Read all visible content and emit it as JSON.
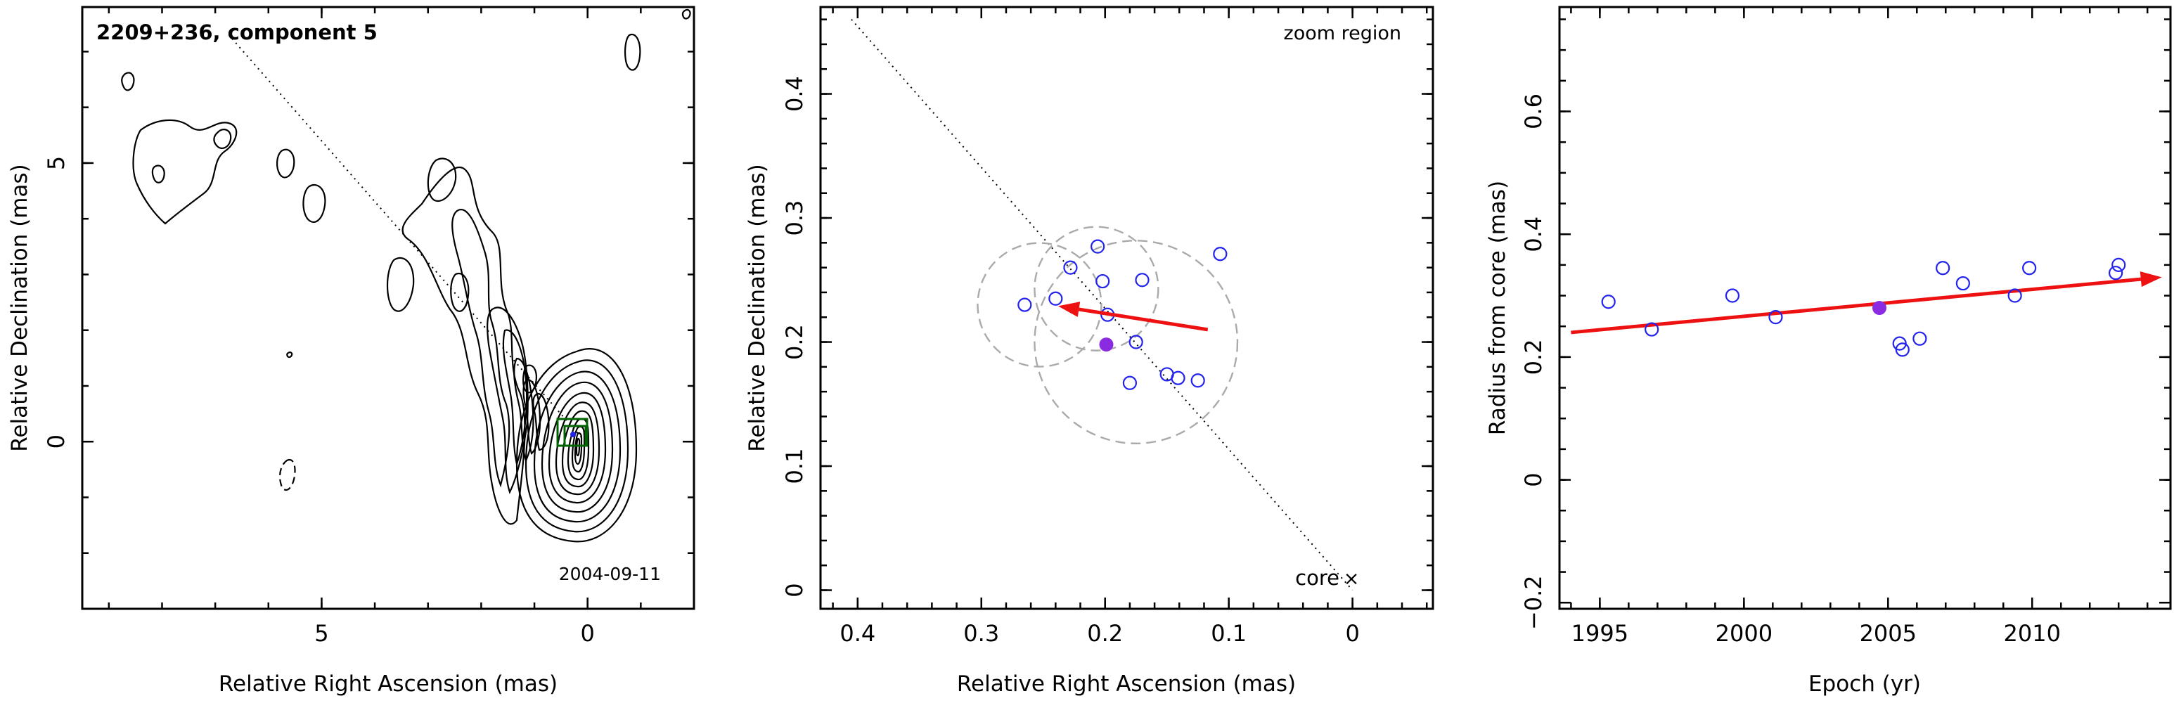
{
  "colors": {
    "frame": "#000000",
    "points": "#2323ee",
    "highlight_point": "#8a2be2",
    "arrow": "#ee1111",
    "circles": "#aaaaaa",
    "box": "#006400"
  },
  "panels": {
    "a": {
      "title": "2209+236, component 5",
      "epoch": "2004-09-11"
    },
    "b": {
      "zoom_label": "zoom region",
      "core_label": "core",
      "core_marker": "×"
    }
  },
  "chart_data": [
    {
      "type": "contour map",
      "title": "2209+236, component 5",
      "annotation": "2004-09-11",
      "xlabel": "Relative Right Ascension (mas)",
      "ylabel": "Relative Declination (mas)",
      "xlim": [
        9.5,
        -2.0
      ],
      "ylim": [
        -3.0,
        7.8
      ],
      "xticks": [
        5,
        0
      ],
      "yticks": [
        5,
        0
      ],
      "component_position": [
        0.2,
        0.2
      ],
      "features": [
        "total-intensity contours",
        "jet ridge line",
        "component box"
      ]
    },
    {
      "type": "scatter",
      "title": "",
      "annotation": "zoom region",
      "xlabel": "Relative Right Ascension (mas)",
      "ylabel": "Relative Declination (mas)",
      "xlim": [
        0.43,
        -0.065
      ],
      "ylim": [
        -0.015,
        0.47
      ],
      "xticks": [
        0.4,
        0.3,
        0.2,
        0.1,
        0
      ],
      "yticks": [
        0,
        0.1,
        0.2,
        0.3,
        0.4
      ],
      "points": [
        {
          "x": 0.265,
          "y": 0.23
        },
        {
          "x": 0.24,
          "y": 0.235
        },
        {
          "x": 0.228,
          "y": 0.26
        },
        {
          "x": 0.206,
          "y": 0.277
        },
        {
          "x": 0.202,
          "y": 0.249
        },
        {
          "x": 0.198,
          "y": 0.222
        },
        {
          "x": 0.17,
          "y": 0.25
        },
        {
          "x": 0.175,
          "y": 0.2
        },
        {
          "x": 0.18,
          "y": 0.167
        },
        {
          "x": 0.15,
          "y": 0.174
        },
        {
          "x": 0.141,
          "y": 0.171
        },
        {
          "x": 0.125,
          "y": 0.169
        },
        {
          "x": 0.107,
          "y": 0.271
        }
      ],
      "highlight": {
        "x": 0.199,
        "y": 0.198
      },
      "arrow": {
        "from": [
          0.117,
          0.21
        ],
        "to": [
          0.238,
          0.229
        ]
      },
      "circles": [
        {
          "cx": 0.253,
          "cy": 0.23,
          "r": 0.05
        },
        {
          "cx": 0.207,
          "cy": 0.243,
          "r": 0.05
        },
        {
          "cx": 0.175,
          "cy": 0.2,
          "r": 0.082
        }
      ],
      "core": {
        "x": 0,
        "y": 0
      },
      "ridge_line": {
        "from": [
          0.405,
          0.46
        ],
        "to": [
          0,
          0
        ]
      }
    },
    {
      "type": "scatter",
      "title": "",
      "xlabel": "Epoch (yr)",
      "ylabel": "Radius from core (mas)",
      "xlim": [
        1993.6,
        2014.8
      ],
      "ylim": [
        -0.21,
        0.77
      ],
      "xticks": [
        1995,
        2000,
        2005,
        2010
      ],
      "yticks": [
        -0.2,
        0,
        0.2,
        0.4,
        0.6
      ],
      "points": [
        {
          "x": 1995.3,
          "y": 0.29
        },
        {
          "x": 1996.8,
          "y": 0.245
        },
        {
          "x": 1999.6,
          "y": 0.3
        },
        {
          "x": 2001.1,
          "y": 0.265
        },
        {
          "x": 2005.4,
          "y": 0.222
        },
        {
          "x": 2005.5,
          "y": 0.212
        },
        {
          "x": 2006.1,
          "y": 0.23
        },
        {
          "x": 2006.9,
          "y": 0.345
        },
        {
          "x": 2007.6,
          "y": 0.32
        },
        {
          "x": 2009.4,
          "y": 0.3
        },
        {
          "x": 2009.9,
          "y": 0.345
        },
        {
          "x": 2012.9,
          "y": 0.337
        },
        {
          "x": 2013.0,
          "y": 0.35
        }
      ],
      "highlight": {
        "x": 2004.7,
        "y": 0.28
      },
      "fit_line": {
        "from": [
          1994.0,
          0.24
        ],
        "to": [
          2014.5,
          0.33
        ]
      }
    }
  ]
}
